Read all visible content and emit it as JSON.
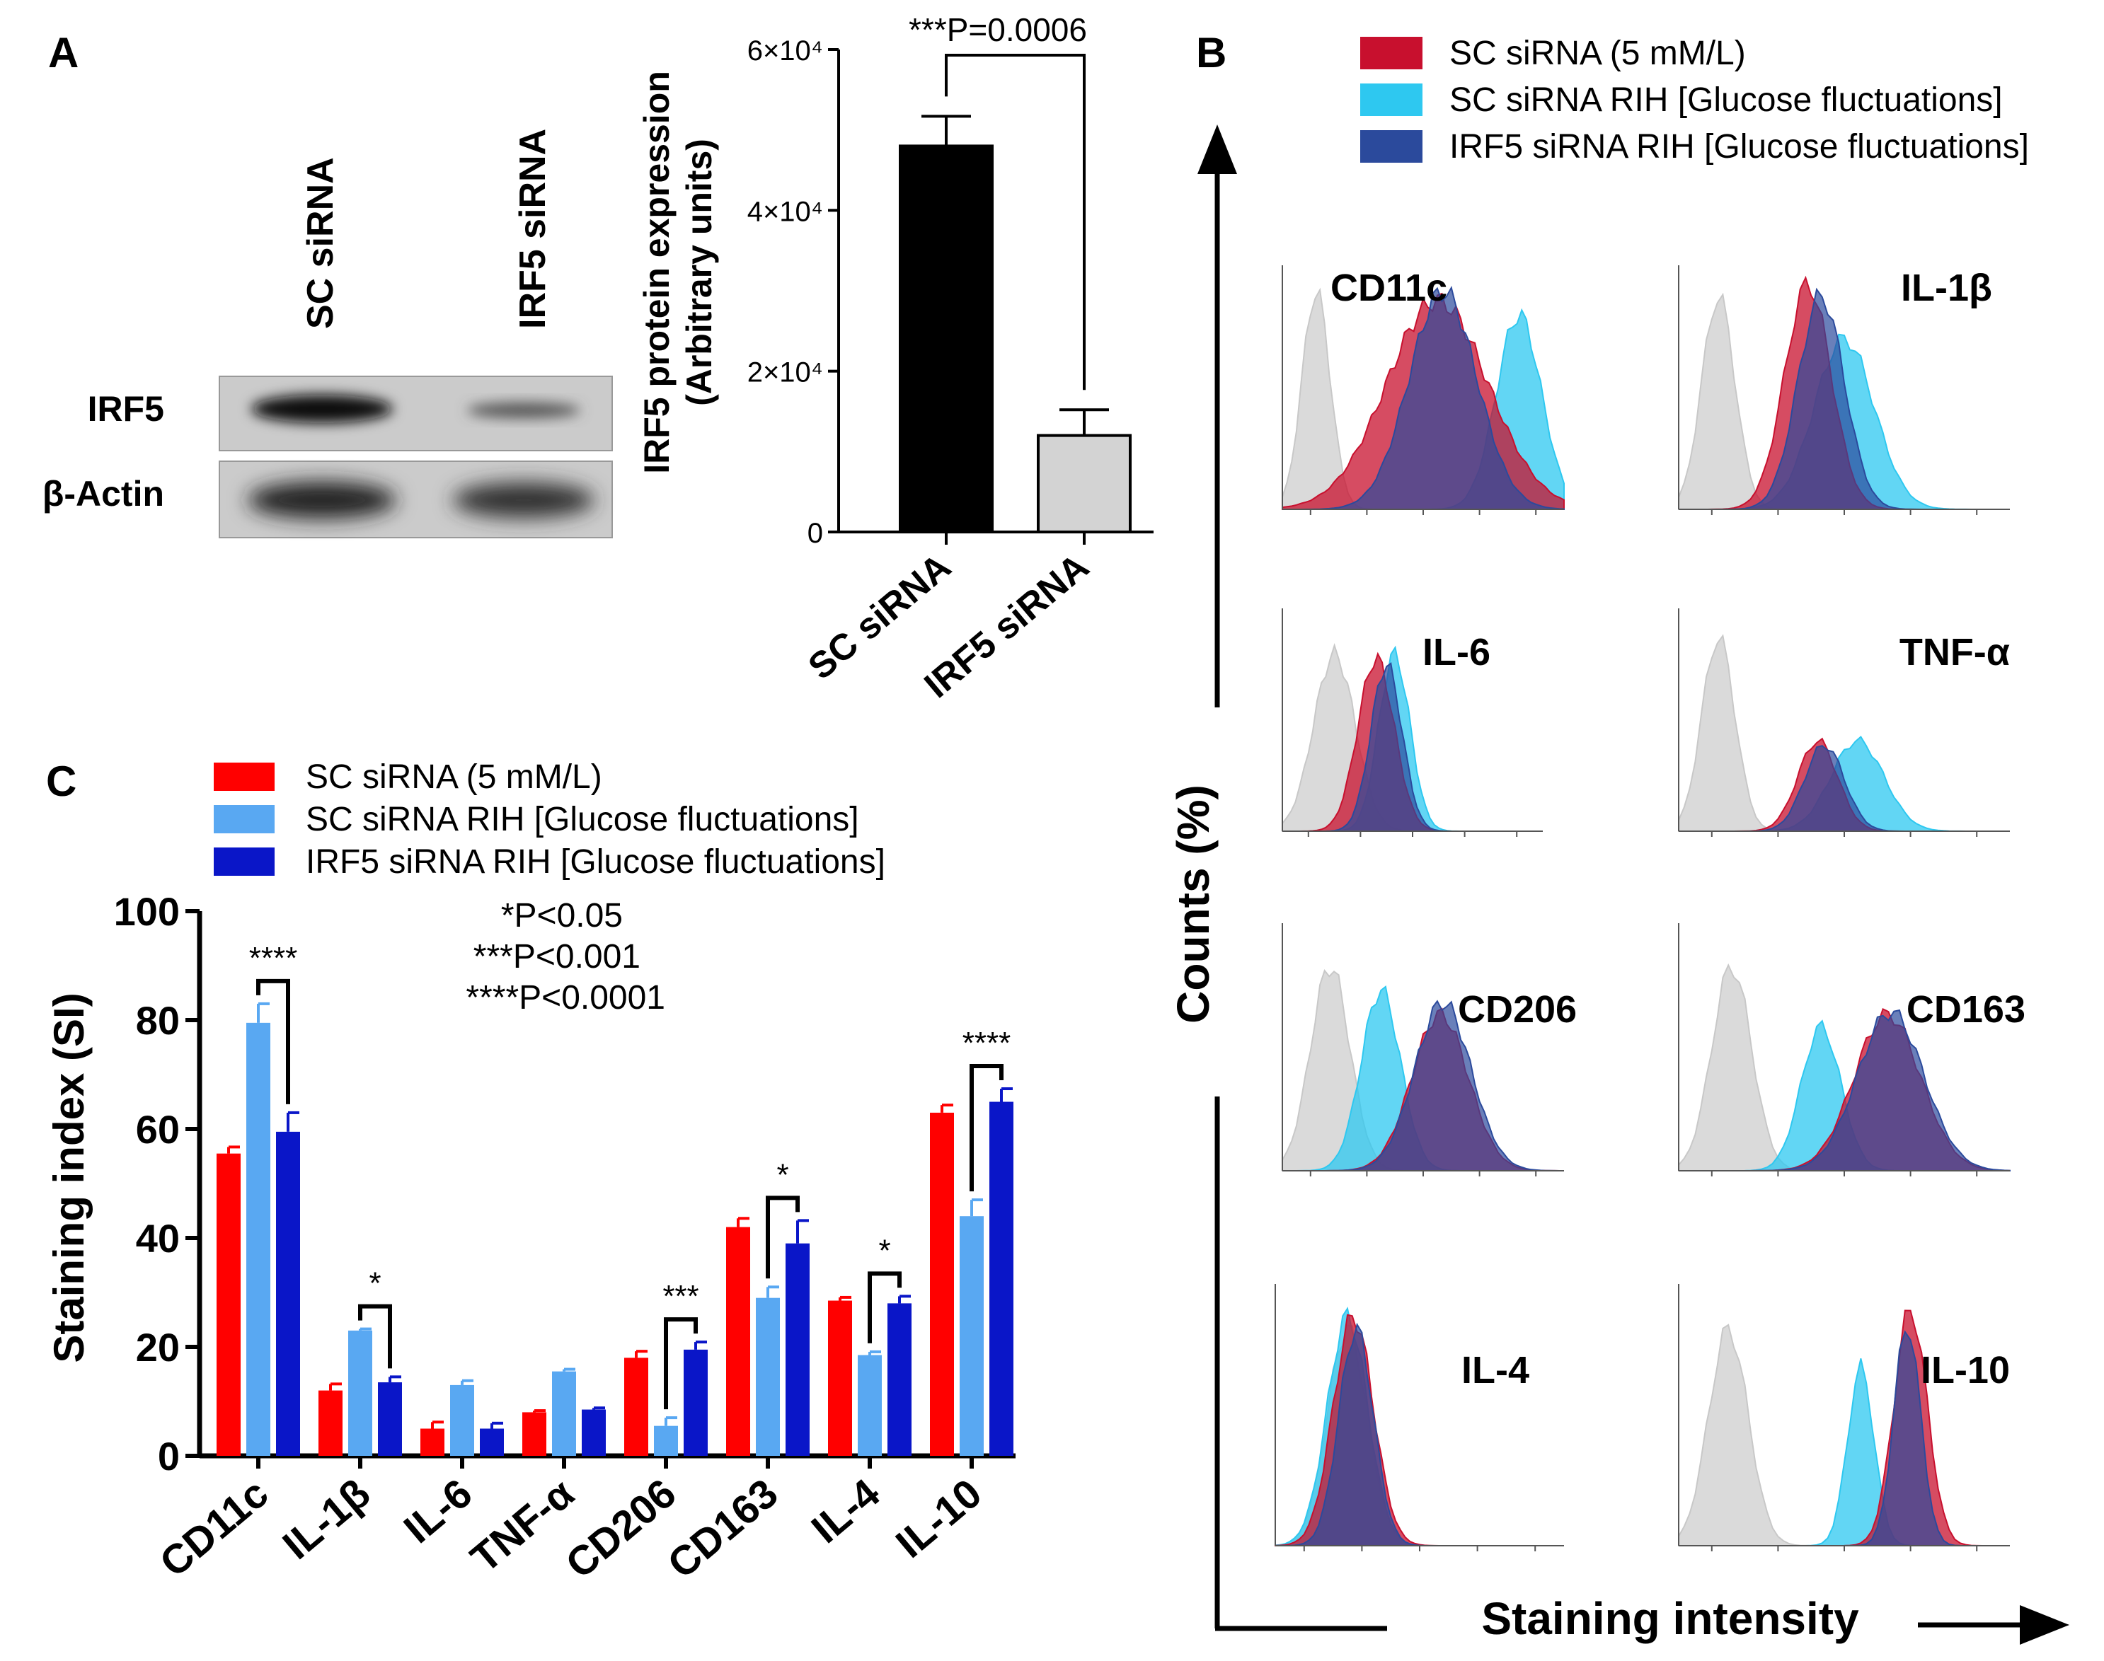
{
  "panels": {
    "A": {
      "letter": "A",
      "blot": {
        "lanes": [
          "SC siRNA",
          "IRF5 siRNA"
        ],
        "rows": [
          "IRF5",
          "β-Actin"
        ]
      }
    },
    "B": {
      "letter": "B"
    },
    "C": {
      "letter": "C"
    }
  },
  "chart_data": [
    {
      "id": "irf5-expression",
      "type": "bar",
      "categories": [
        "SC siRNA",
        "IRF5 siRNA"
      ],
      "values": [
        48000,
        12000
      ],
      "errors": [
        3700,
        3200
      ],
      "colors": [
        "#000000",
        "#d3d3d3"
      ],
      "ylabel": "IRF5 protein expression",
      "ylabel2": "(Arbitrary units)",
      "ylim": [
        0,
        60000
      ],
      "yticks": [
        {
          "v": 0,
          "label": "0"
        },
        {
          "v": 20000,
          "label": "2×10⁴"
        },
        {
          "v": 40000,
          "label": "4×10⁴"
        },
        {
          "v": 60000,
          "label": "6×10⁴"
        }
      ],
      "annotation": "***P=0.0006"
    },
    {
      "id": "staining-index",
      "type": "bar",
      "categories": [
        "CD11c",
        "IL-1β",
        "IL-6",
        "TNF-α",
        "CD206",
        "CD163",
        "IL-4",
        "IL-10"
      ],
      "series": [
        {
          "name": "SC siRNA (5 mM/L)",
          "color": "#ff0000",
          "values": [
            55.5,
            12,
            5,
            8,
            18,
            42,
            28.5,
            63
          ],
          "errors": [
            1.2,
            1.2,
            1.2,
            0.3,
            1.2,
            1.6,
            0.6,
            1.4
          ]
        },
        {
          "name": "SC siRNA RIH [Glucose fluctuations]",
          "color": "#59a8f2",
          "values": [
            79.5,
            23,
            13,
            15.5,
            5.5,
            29,
            18.5,
            44
          ],
          "errors": [
            3.5,
            0.3,
            0.8,
            0.4,
            1.5,
            2,
            0.6,
            3
          ]
        },
        {
          "name": "IRF5 siRNA RIH [Glucose fluctuations]",
          "color": "#0a16c8",
          "values": [
            59.5,
            13.5,
            5,
            8.5,
            19.5,
            39,
            28,
            65
          ],
          "errors": [
            3.5,
            1,
            1,
            0.3,
            1.4,
            4.2,
            1.3,
            2.4
          ]
        }
      ],
      "ylabel": "Staining index (SI)",
      "ylim": [
        0,
        100
      ],
      "yticks": [
        0,
        20,
        40,
        60,
        80,
        100
      ],
      "significance": [
        {
          "cat": 0,
          "label": "****"
        },
        {
          "cat": 1,
          "label": "*"
        },
        {
          "cat": 4,
          "label": "***"
        },
        {
          "cat": 5,
          "label": "*"
        },
        {
          "cat": 6,
          "label": "*"
        },
        {
          "cat": 7,
          "label": "****"
        }
      ],
      "pvalue_legend": [
        "*P<0.05",
        "***P<0.001",
        "****P<0.0001"
      ]
    },
    {
      "id": "flow-histograms",
      "type": "area",
      "legend": [
        {
          "name": "SC siRNA (5 mM/L)",
          "color": "#c8102e"
        },
        {
          "name": "SC siRNA RIH [Glucose fluctuations]",
          "color": "#2ec8f0"
        },
        {
          "name": "IRF5 siRNA RIH [Glucose fluctuations]",
          "color": "#2b4a9c"
        }
      ],
      "ylabel": "Counts (%)",
      "xlabel": "Staining intensity",
      "markers": [
        "CD11c",
        "IL-1β",
        "IL-6",
        "TNF-α",
        "CD206",
        "CD163",
        "IL-4",
        "IL-10"
      ]
    }
  ]
}
